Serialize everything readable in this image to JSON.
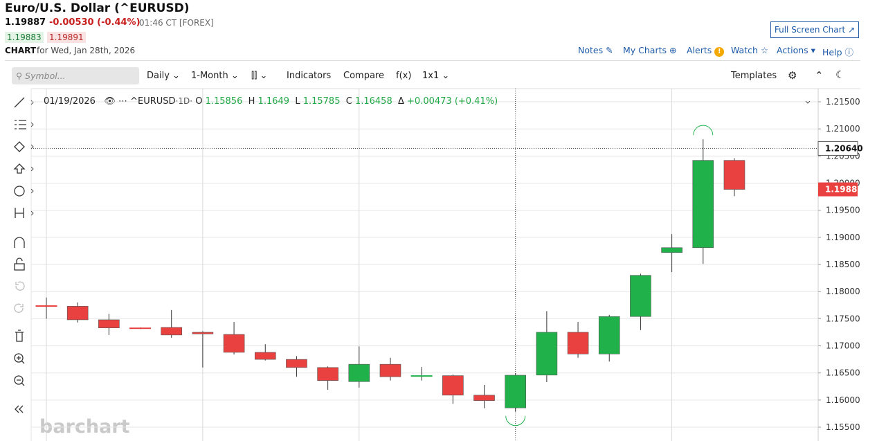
{
  "header": {
    "title": "Euro/U.S. Dollar (^EURUSD)",
    "last": "1.19887",
    "change": "-0.00530 (-0.44%)",
    "time": "01:46 CT [FOREX]",
    "bid": "1.19883",
    "ask": "1.19891",
    "chart_label": "CHART",
    "chart_date": "for Wed, Jan 28th, 2026"
  },
  "links": {
    "full_screen": "Full Screen Chart",
    "notes": "Notes",
    "my_charts": "My Charts",
    "alerts": "Alerts",
    "watch": "Watch",
    "actions": "Actions",
    "help": "Help"
  },
  "toolbar": {
    "symbol_placeholder": "Symbol...",
    "interval": "Daily",
    "range": "1-Month",
    "indicators": "Indicators",
    "compare": "Compare",
    "fx": "f(x)",
    "layout": "1x1",
    "templates": "Templates"
  },
  "legend": {
    "date": "01/19/2026",
    "symbol": "^EURUSD",
    "interval": "·1D·",
    "o": "O",
    "h": "H",
    "l": "L",
    "c": "C",
    "delta": "Δ",
    "delta_value": "+0.00473 (+0.41%)"
  },
  "watermark": "barchart",
  "chart_data": {
    "type": "candlestick",
    "open": [
      1.1774,
      1.1773,
      1.1748,
      1.1733,
      1.1734,
      1.1725,
      1.1721,
      1.1688,
      1.1675,
      1.166,
      1.1634,
      1.1666,
      1.1644,
      1.1645,
      1.1609,
      1.15856,
      1.1646,
      1.1725,
      1.1685,
      1.1754,
      1.1872,
      1.1881,
      1.2042
    ],
    "high": [
      1.1789,
      1.178,
      1.1759,
      1.1734,
      1.1766,
      1.1727,
      1.1744,
      1.1703,
      1.1681,
      1.1662,
      1.1699,
      1.1678,
      1.1661,
      1.1647,
      1.1628,
      1.1649,
      1.1764,
      1.1744,
      1.1757,
      1.1833,
      1.1906,
      1.2081,
      1.2046
    ],
    "low": [
      1.175,
      1.1743,
      1.172,
      1.1731,
      1.1715,
      1.166,
      1.1684,
      1.1673,
      1.1643,
      1.1619,
      1.1623,
      1.1636,
      1.1636,
      1.1593,
      1.1585,
      1.15785,
      1.1633,
      1.1678,
      1.1671,
      1.1729,
      1.1836,
      1.1851,
      1.1976
    ],
    "close": [
      1.1773,
      1.1748,
      1.1733,
      1.1732,
      1.172,
      1.1722,
      1.1688,
      1.1675,
      1.166,
      1.1636,
      1.1666,
      1.1643,
      1.1645,
      1.1609,
      1.1599,
      1.16458,
      1.1725,
      1.1685,
      1.1754,
      1.183,
      1.1881,
      1.2042,
      1.19885
    ],
    "up_color": "#21b14b",
    "down_color": "#e8413f",
    "ylim": [
      1.15245,
      1.21743
    ],
    "yticks": [
      {
        "value": 1.155,
        "label": "1.15500"
      },
      {
        "value": 1.16,
        "label": "1.16000"
      },
      {
        "value": 1.165,
        "label": "1.16500"
      },
      {
        "value": 1.17,
        "label": "1.17000"
      },
      {
        "value": 1.175,
        "label": "1.17500"
      },
      {
        "value": 1.18,
        "label": "1.18000"
      },
      {
        "value": 1.185,
        "label": "1.18500"
      },
      {
        "value": 1.19,
        "label": "1.19000"
      },
      {
        "value": 1.195,
        "label": "1.19500"
      },
      {
        "value": 1.2,
        "label": "1.20000"
      },
      {
        "value": 1.205,
        "label": "1.20500"
      },
      {
        "value": 1.21,
        "label": "1.21000"
      },
      {
        "value": 1.215,
        "label": "1.21500"
      }
    ],
    "grid": true,
    "crosshair_price": {
      "value": 1.2064,
      "label": "1.20640"
    },
    "last_price": {
      "value": 1.19885,
      "label": "1.19885"
    }
  }
}
